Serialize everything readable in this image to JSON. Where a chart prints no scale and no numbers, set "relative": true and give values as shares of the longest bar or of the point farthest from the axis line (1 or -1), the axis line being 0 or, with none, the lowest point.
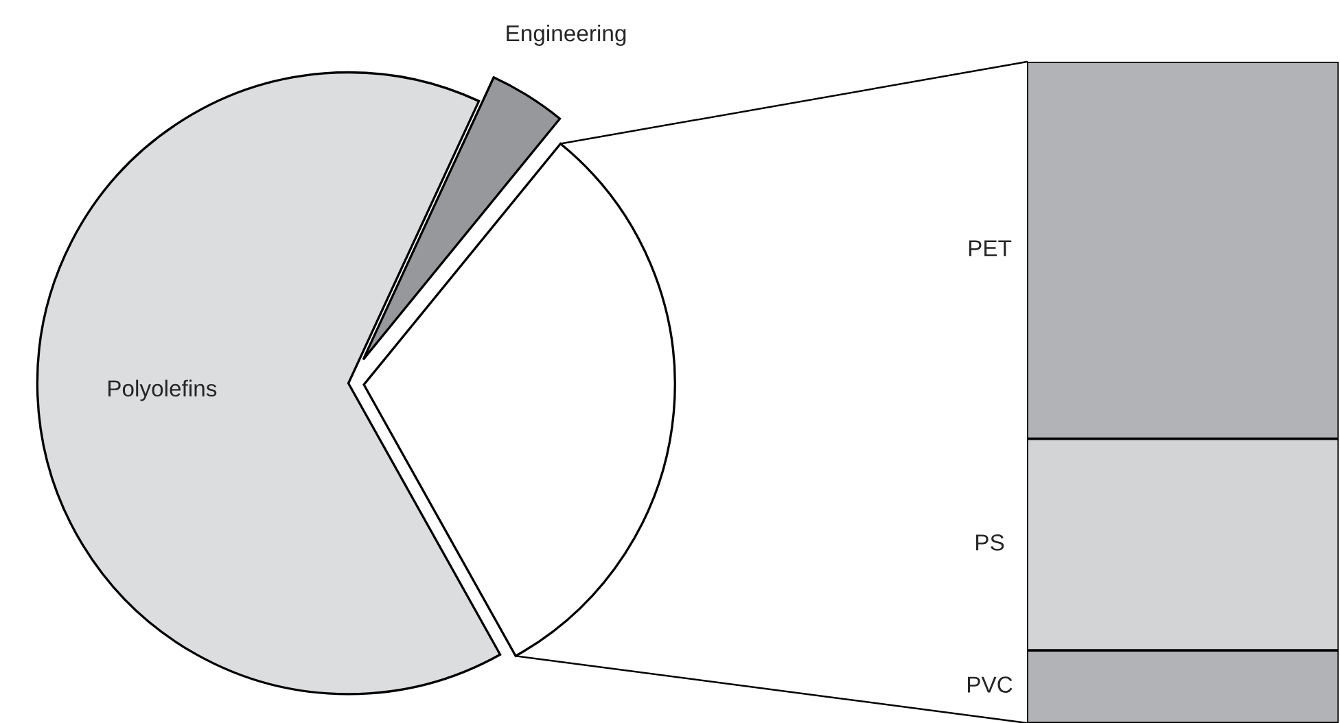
{
  "chart_data": [
    {
      "type": "pie",
      "categories": [
        null,
        "Engineering",
        "Polyolefins"
      ],
      "values": [
        31,
        4,
        65
      ],
      "colors": [
        "#ffffff",
        "#97989b",
        "#dcdddf"
      ]
    },
    {
      "type": "bar",
      "stacked": true,
      "relative": true,
      "categories": [
        null
      ],
      "series": [
        {
          "name": "PVC",
          "color": "#b2b3b6",
          "values": [
            0.11
          ]
        },
        {
          "name": "PS",
          "color": "#d3d4d6",
          "values": [
            0.32
          ]
        },
        {
          "name": "PET",
          "color": "#b2b3b6",
          "values": [
            0.57
          ]
        }
      ]
    }
  ]
}
